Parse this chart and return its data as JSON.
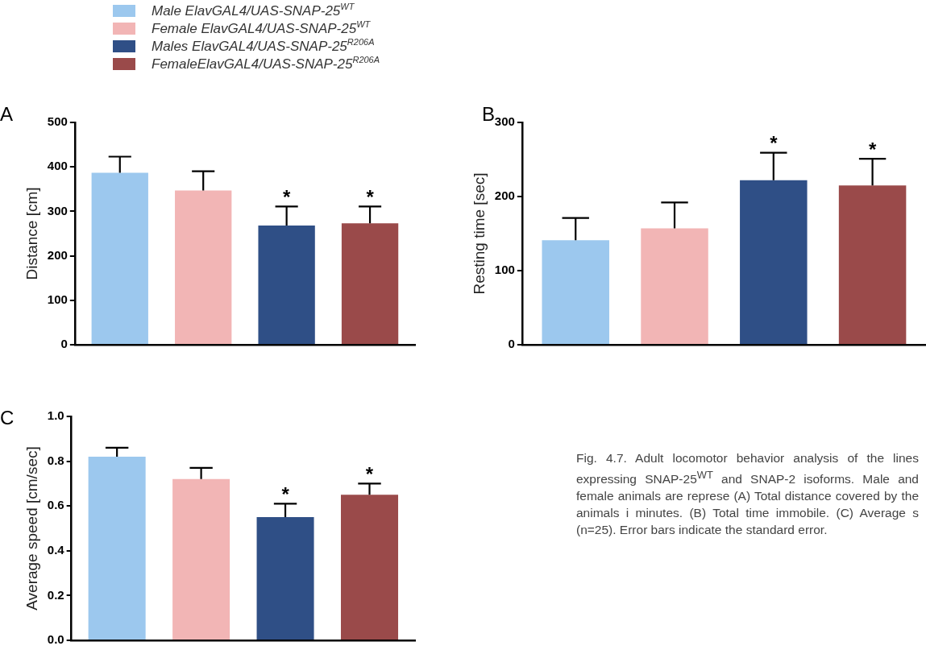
{
  "chart_data": [
    {
      "type": "bar",
      "title": "A",
      "ylabel": "Distance [cm]",
      "categories": [
        null
      ],
      "ylim": [
        0,
        500
      ],
      "yticks": [
        0,
        100,
        200,
        300,
        400,
        500
      ],
      "grid": false,
      "legend": "top",
      "series": [
        {
          "name": "Male ElavGAL4/UAS-SNAP-25$^{WT}$",
          "color": "#9cc8ee",
          "values": [
            387
          ],
          "errors": [
            [
              387,
              423
            ]
          ]
        },
        {
          "name": "Female ElavGAL4/UAS-SNAP-25$^{WT}$",
          "color": "#f2b5b5",
          "values": [
            347
          ],
          "errors": [
            [
              347,
              390
            ]
          ]
        },
        {
          "name": "Males ElavGAL4/UAS-SNAP-25$^{R206A}$",
          "color": "#2f4f86",
          "values": [
            268
          ],
          "errors": [
            [
              268,
              311
            ]
          ],
          "value_labels": [
            "*"
          ]
        },
        {
          "name": "FemaleElavGAL4/UAS-SNAP-25$^{R206A}$",
          "color": "#9a4a4a",
          "values": [
            273
          ],
          "errors": [
            [
              273,
              311
            ]
          ],
          "value_labels": [
            "*"
          ]
        }
      ]
    },
    {
      "type": "bar",
      "title": "B",
      "ylabel": "Resting time [sec]",
      "categories": [
        null
      ],
      "ylim": [
        0,
        300
      ],
      "yticks": [
        0,
        100,
        200,
        300
      ],
      "grid": false,
      "series": [
        {
          "color": "#9cc8ee",
          "values": [
            141
          ],
          "errors": [
            [
              141,
              171
            ]
          ]
        },
        {
          "color": "#f2b5b5",
          "values": [
            157
          ],
          "errors": [
            [
              157,
              192
            ]
          ]
        },
        {
          "color": "#2f4f86",
          "values": [
            222
          ],
          "errors": [
            [
              222,
              259
            ]
          ],
          "value_labels": [
            "*"
          ]
        },
        {
          "color": "#9a4a4a",
          "values": [
            215
          ],
          "errors": [
            [
              215,
              251
            ]
          ],
          "value_labels": [
            "*"
          ]
        }
      ]
    },
    {
      "type": "bar",
      "title": "C",
      "ylabel": "Average speed [cm/sec]",
      "categories": [
        null
      ],
      "ylim": [
        0,
        1.0
      ],
      "yticks": [
        {
          "value": 0,
          "label": "0.0"
        },
        0.2,
        0.4,
        0.6,
        0.8,
        {
          "value": 1,
          "label": "1.0"
        }
      ],
      "grid": false,
      "annotations": [
        "Fig. 4.7. Adult locomotor behavior analysis of the lines expressing SNAP-25$^{WT}$ and SNAP-2 isoforms. Male and female animals are represe (A) Total distance covered by the animals i minutes. (B) Total time immobile. (C) Average s (n=25). Error bars indicate the standard error."
      ],
      "series": [
        {
          "color": "#9cc8ee",
          "values": [
            0.82
          ],
          "errors": [
            [
              0.82,
              0.86
            ]
          ]
        },
        {
          "color": "#f2b5b5",
          "values": [
            0.72
          ],
          "errors": [
            [
              0.72,
              0.77
            ]
          ]
        },
        {
          "color": "#2f4f86",
          "values": [
            0.55
          ],
          "errors": [
            [
              0.55,
              0.61
            ]
          ],
          "value_labels": [
            "*"
          ]
        },
        {
          "color": "#9a4a4a",
          "values": [
            0.65
          ],
          "errors": [
            [
              0.65,
              0.7
            ]
          ],
          "value_labels": [
            "*"
          ]
        }
      ]
    }
  ]
}
